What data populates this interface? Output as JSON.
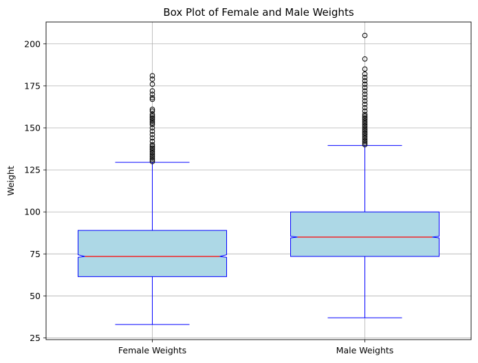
{
  "chart_data": {
    "type": "box",
    "title": "Box Plot of Female and Male Weights",
    "xlabel": "",
    "ylabel": "Weight",
    "ylim": [
      24,
      213
    ],
    "yticks": [
      25,
      50,
      75,
      100,
      125,
      150,
      175,
      200
    ],
    "grid": true,
    "notched": true,
    "colors": {
      "box_fill": "#add8e6",
      "box_edge": "#0000ff",
      "whisker": "#0000ff",
      "median": "#ff0000",
      "flier_edge": "#000000",
      "grid": "#b0b0b0"
    },
    "categories": [
      "Female Weights",
      "Male Weights"
    ],
    "boxes": [
      {
        "label": "Female Weights",
        "whislo": 33,
        "q1": 61.5,
        "med": 73.5,
        "q3": 89,
        "notch_lo": 73,
        "notch_hi": 74.5,
        "whishi": 129.5,
        "fliers": [
          130,
          131,
          132,
          133,
          134,
          135,
          136,
          137,
          138,
          139,
          140,
          142,
          144,
          146,
          148,
          150,
          152,
          153,
          154,
          155,
          156,
          157,
          158,
          160,
          161,
          167,
          168,
          170,
          172,
          176,
          179,
          181
        ]
      },
      {
        "label": "Male Weights",
        "whislo": 37,
        "q1": 73.5,
        "med": 85,
        "q3": 100,
        "notch_lo": 84.5,
        "notch_hi": 85.5,
        "whishi": 139.5,
        "fliers": [
          140,
          141,
          142,
          143,
          144,
          145,
          146,
          147,
          148,
          149,
          150,
          151,
          152,
          153,
          154,
          155,
          156,
          157,
          158,
          160,
          162,
          164,
          166,
          168,
          170,
          172,
          174,
          176,
          178,
          180,
          182,
          185,
          191,
          205
        ]
      }
    ]
  }
}
